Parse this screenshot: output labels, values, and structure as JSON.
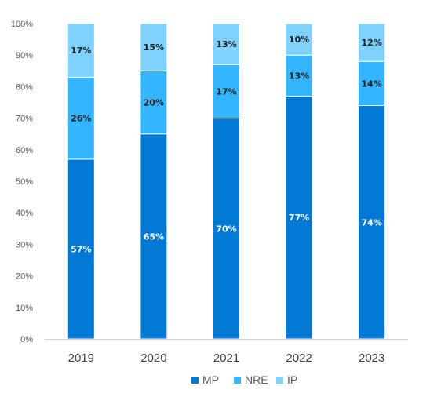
{
  "chart_data": {
    "type": "bar",
    "stacked": true,
    "categories": [
      "2019",
      "2020",
      "2021",
      "2022",
      "2023"
    ],
    "series": [
      {
        "name": "MP",
        "values": [
          57,
          65,
          70,
          77,
          74
        ],
        "color": "#0078D4",
        "label_color": "#ffffff"
      },
      {
        "name": "NRE",
        "values": [
          26,
          20,
          17,
          13,
          14
        ],
        "color": "#33B5FF",
        "label_color": "#1f1f1f"
      },
      {
        "name": "IP",
        "values": [
          17,
          15,
          13,
          10,
          12
        ],
        "color": "#7FD1FF",
        "label_color": "#1f1f1f"
      }
    ],
    "value_suffix": "%",
    "ylim": [
      0,
      100
    ],
    "yticks": [
      "0%",
      "10%",
      "20%",
      "30%",
      "40%",
      "50%",
      "60%",
      "70%",
      "80%",
      "90%",
      "100%"
    ],
    "title": "",
    "xlabel": "",
    "ylabel": "",
    "grid": false,
    "legend_position": "bottom"
  }
}
